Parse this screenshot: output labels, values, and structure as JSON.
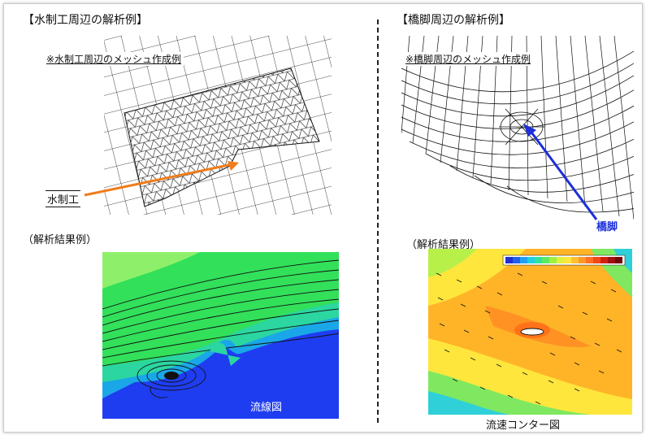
{
  "left": {
    "title": "【水制工周辺の解析例】",
    "mesh_caption": "※水制工周辺のメッシュ作成例",
    "structure_label": "水制工",
    "result_heading": "（解析結果例）",
    "result_caption": "流線図"
  },
  "right": {
    "title": "【橋脚周辺の解析例】",
    "mesh_caption": "※橋脚周辺のメッシュ作成例",
    "structure_label": "橋脚",
    "result_heading": "（解析結果例）",
    "result_caption": "流速コンター図"
  },
  "colors": {
    "arrow_left": "#f07c1a",
    "arrow_right": "#1c2fd8",
    "flow_blue": "#1f3df0",
    "flow_green": "#32e05a",
    "contour_orange": "#ffb428",
    "contour_yellow": "#ffe63c"
  }
}
